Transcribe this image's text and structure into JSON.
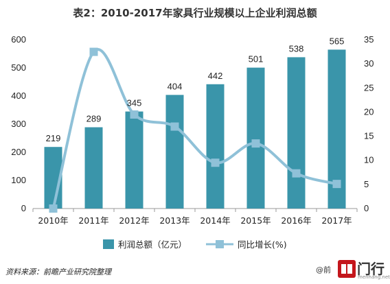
{
  "chart_data": {
    "type": "bar+line",
    "title": "表2：2010-2017年家具行业规模以上企业利润总额",
    "categories": [
      "2010年",
      "2011年",
      "2012年",
      "2013年",
      "2014年",
      "2015年",
      "2016年",
      "2017年"
    ],
    "series": [
      {
        "name": "利润总额（亿元）",
        "type": "bar",
        "axis": "left",
        "values": [
          219,
          289,
          345,
          404,
          442,
          501,
          538,
          565
        ],
        "color": "#3a95aa"
      },
      {
        "name": "同比增长(%)",
        "type": "line",
        "axis": "right",
        "values": [
          0,
          32.5,
          19.5,
          17.0,
          9.5,
          13.5,
          7.3,
          5.1
        ],
        "color": "#8fc1d8"
      }
    ],
    "left_axis": {
      "ylim": [
        0,
        600
      ],
      "ticks": [
        0,
        100,
        200,
        300,
        400,
        500,
        600
      ]
    },
    "right_axis": {
      "ylim": [
        0,
        35
      ],
      "ticks": [
        0,
        5,
        10,
        15,
        20,
        25,
        30,
        35
      ]
    },
    "grid": false,
    "legend_position": "bottom",
    "data_labels": [
      "219",
      "289",
      "345",
      "404",
      "442",
      "501",
      "538",
      "565"
    ]
  },
  "footer": {
    "source": "资料来源：前瞻产业研究院整理",
    "logo_left": "@前",
    "logo_text": "门行",
    "logo_sub": "menhang.net"
  },
  "colors": {
    "bar": "#3a95aa",
    "line": "#8fc1d8",
    "axis": "#999999"
  }
}
